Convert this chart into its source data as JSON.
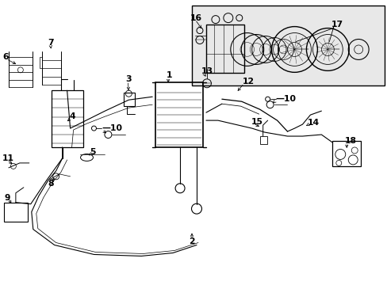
{
  "background_color": "#ffffff",
  "line_color": "#000000",
  "box_bg": "#e8e8e8",
  "fig_width": 4.89,
  "fig_height": 3.6,
  "dpi": 100
}
